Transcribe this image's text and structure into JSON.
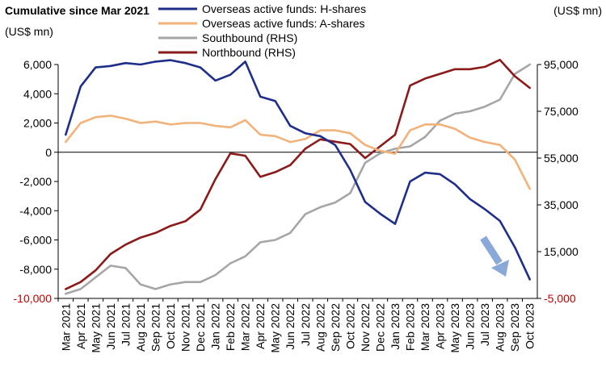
{
  "chart_data": {
    "type": "line",
    "title": "Cumulative since Mar 2021",
    "left_unit": "(US$ mn)",
    "right_unit": "(US$ mn)",
    "x_labels": [
      "Mar 2021",
      "Apr 2021",
      "May 2021",
      "Jun 2021",
      "Jul 2021",
      "Aug 2021",
      "Sep 2021",
      "Oct 2021",
      "Nov 2021",
      "Dec 2021",
      "Jan 2022",
      "Feb 2022",
      "Mar 2022",
      "Apr 2022",
      "May 2022",
      "Jun 2022",
      "Jul 2022",
      "Aug 2022",
      "Sep 2022",
      "Oct 2022",
      "Nov 2022",
      "Dec 2022",
      "Jan 2023",
      "Feb 2023",
      "Mar 2023",
      "Apr 2023",
      "May 2023",
      "Jun 2023",
      "Jul 2023",
      "Aug 2023",
      "Sep 2023",
      "Oct 2023"
    ],
    "left_axis": {
      "min": -10000,
      "max": 6000,
      "ticks": [
        6000,
        4000,
        2000,
        0,
        -2000,
        -4000,
        -6000,
        -8000,
        -10000
      ],
      "tick_labels": [
        "6,000",
        "4,000",
        "2,000",
        "0",
        "-2,000",
        "-4,000",
        "-6,000",
        "-8,000",
        "-10,000"
      ]
    },
    "right_axis": {
      "min": -5000,
      "max": 95000,
      "ticks": [
        95000,
        75000,
        55000,
        35000,
        15000,
        -5000
      ],
      "tick_labels": [
        "95,000",
        "75,000",
        "55,000",
        "35,000",
        "15,000",
        "-5,000"
      ]
    },
    "legend_position": "top",
    "annotation": "down-arrow",
    "series": [
      {
        "name": "Overseas active funds: H-shares",
        "axis": "left",
        "color": "#1f2e8a",
        "values": [
          1200,
          4500,
          5800,
          5900,
          6100,
          6000,
          6200,
          6300,
          6100,
          5800,
          4900,
          5300,
          6200,
          3800,
          3500,
          1800,
          1300,
          1100,
          500,
          -1200,
          -3400,
          -4200,
          -4900,
          -2000,
          -1400,
          -1500,
          -2200,
          -3200,
          -3900,
          -4700,
          -6500,
          -8700
        ]
      },
      {
        "name": "Overseas active funds: A-shares",
        "axis": "left",
        "color": "#f2b27a",
        "values": [
          700,
          2000,
          2400,
          2500,
          2300,
          2000,
          2100,
          1900,
          2000,
          2000,
          1800,
          1700,
          2200,
          1200,
          1100,
          700,
          900,
          1500,
          1500,
          1300,
          500,
          100,
          -100,
          1500,
          1900,
          1900,
          1600,
          1000,
          700,
          500,
          -500,
          -2500
        ]
      },
      {
        "name": "Southbound (RHS)",
        "axis": "right",
        "color": "#a6a6a6",
        "values": [
          -3000,
          -1000,
          4000,
          9000,
          8000,
          1000,
          -1000,
          1000,
          2000,
          2000,
          5000,
          10000,
          13000,
          19000,
          20000,
          23000,
          31000,
          34000,
          36000,
          40000,
          53000,
          57000,
          59000,
          60000,
          64000,
          71000,
          74000,
          75000,
          77000,
          80000,
          91000,
          95000
        ]
      },
      {
        "name": "Northbound (RHS)",
        "axis": "right",
        "color": "#8b1a1a",
        "values": [
          -1000,
          2000,
          7000,
          14000,
          18000,
          21000,
          23000,
          26000,
          28000,
          33000,
          46000,
          57000,
          56000,
          47000,
          49000,
          52000,
          59000,
          63000,
          62000,
          61000,
          55000,
          60000,
          65000,
          86000,
          89000,
          91000,
          93000,
          93000,
          94000,
          97000,
          90000,
          85000
        ]
      }
    ]
  }
}
